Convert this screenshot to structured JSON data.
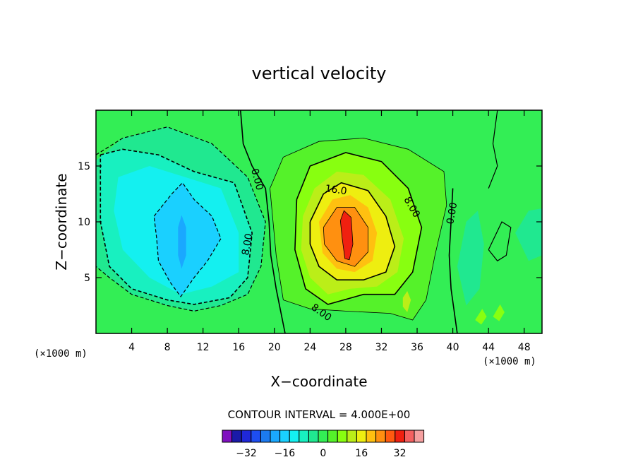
{
  "chart_data": {
    "type": "contour",
    "title": "vertical velocity",
    "xlabel": "X−coordinate",
    "ylabel": "Z−coordinate",
    "x_unit": "(×1000 m)",
    "z_unit": "(×1000 m)",
    "xlim": [
      0,
      50
    ],
    "ylim": [
      0,
      20
    ],
    "x_ticks": [
      "4",
      "8",
      "12",
      "16",
      "20",
      "24",
      "28",
      "32",
      "36",
      "40",
      "44",
      "48"
    ],
    "y_ticks": [
      "5",
      "10",
      "15"
    ],
    "contour_interval_text": "CONTOUR INTERVAL = 4.000E+00",
    "contour_interval": 4,
    "contour_labels": [
      "0.00",
      "8.00",
      "16.0",
      "8.00",
      "0.00",
      "8.00"
    ],
    "colorbar": {
      "tick_labels": [
        "−32",
        "−16",
        "0",
        "16",
        "32"
      ],
      "levels": [
        -40,
        -36,
        -32,
        -28,
        -24,
        -20,
        -16,
        -12,
        -8,
        -4,
        0,
        4,
        8,
        12,
        16,
        20,
        24,
        28,
        32,
        36,
        40
      ],
      "colors": [
        "#7f10bf",
        "#1a1aa8",
        "#1f28d8",
        "#1e4ef0",
        "#1c7af0",
        "#1aa8ff",
        "#1ad0ff",
        "#14f0f0",
        "#18f0c0",
        "#20e890",
        "#33ee55",
        "#55f22a",
        "#88ff10",
        "#bbee18",
        "#eeee10",
        "#ffc010",
        "#ff9010",
        "#ff5a10",
        "#f02010",
        "#f46060",
        "#f5a0a0"
      ]
    },
    "field": {
      "background": 0,
      "features": [
        {
          "kind": "downdraft",
          "min": -20,
          "center": [
            10,
            9
          ]
        },
        {
          "kind": "updraft",
          "max": 36,
          "center": [
            28,
            8.5
          ]
        },
        {
          "kind": "updraft",
          "max": 12,
          "center": [
            35,
            3
          ]
        }
      ]
    }
  }
}
